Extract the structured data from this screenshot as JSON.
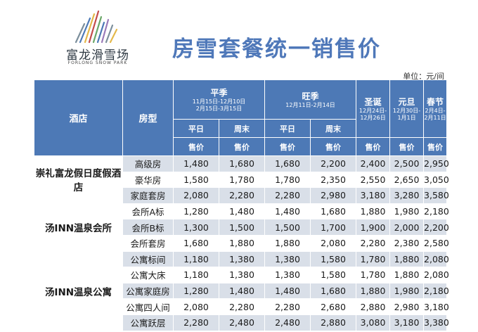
{
  "logo": {
    "cn": "富龙滑雪场",
    "en": "FORLONG SNOW PARK"
  },
  "title": "房雪套餐统一销售价",
  "unit": "单位：元/间",
  "headers": {
    "hotel": "酒店",
    "room": "房型",
    "periods": [
      {
        "name": "平季",
        "dates": [
          "11月15日-12月10日",
          "2月15日-3月15日"
        ]
      },
      {
        "name": "旺季",
        "dates": [
          "12月11日-2月14日"
        ]
      },
      {
        "name": "圣诞",
        "dates": [
          "12月24日-",
          "12月26日"
        ]
      },
      {
        "name": "元旦",
        "dates": [
          "12月30日-",
          "1月1日"
        ]
      },
      {
        "name": "春节",
        "dates": [
          "2月4日-",
          "2月11日"
        ]
      }
    ],
    "weekday": "平日",
    "weekend": "周末",
    "price": "售价"
  },
  "hotels": [
    {
      "name": "崇礼富龙假日度假酒店",
      "rooms": [
        {
          "name": "高级房",
          "prices": [
            "1,480",
            "1,680",
            "1,680",
            "2,200",
            "2,400",
            "2,500",
            "2,950"
          ]
        },
        {
          "name": "豪华房",
          "prices": [
            "1,580",
            "1,780",
            "1,780",
            "2,350",
            "2,550",
            "2,650",
            "3,050"
          ]
        },
        {
          "name": "家庭套房",
          "prices": [
            "2,080",
            "2,280",
            "2,280",
            "2,980",
            "3,180",
            "3,280",
            "3,580"
          ]
        }
      ]
    },
    {
      "name": "汤INN温泉会所",
      "rooms": [
        {
          "name": "会所A标",
          "prices": [
            "1,280",
            "1,480",
            "1,480",
            "1,680",
            "1,880",
            "1,980",
            "2,180"
          ]
        },
        {
          "name": "会所B标",
          "prices": [
            "1,300",
            "1,500",
            "1,500",
            "1,700",
            "1,900",
            "2,000",
            "2,200"
          ]
        },
        {
          "name": "会所套房",
          "prices": [
            "1,680",
            "1,880",
            "1,880",
            "2,080",
            "2,280",
            "2,380",
            "2,580"
          ]
        }
      ]
    },
    {
      "name": "汤INN温泉公寓",
      "rooms": [
        {
          "name": "公寓标间",
          "prices": [
            "1,180",
            "1,380",
            "1,380",
            "1,580",
            "1,780",
            "1,880",
            "2,080"
          ]
        },
        {
          "name": "公寓大床",
          "prices": [
            "1,180",
            "1,380",
            "1,380",
            "1,580",
            "1,780",
            "1,880",
            "2,080"
          ]
        },
        {
          "name": "公寓家庭房",
          "prices": [
            "1,280",
            "1,480",
            "1,480",
            "1,680",
            "1,880",
            "1,980",
            "2,180"
          ]
        },
        {
          "name": "公寓四人间",
          "prices": [
            "2,080",
            "2,280",
            "2,280",
            "2,680",
            "2,880",
            "2,980",
            "3,180"
          ]
        },
        {
          "name": "公寓跃层",
          "prices": [
            "2,280",
            "2,480",
            "2,480",
            "2,880",
            "3,080",
            "3,180",
            "3,380"
          ]
        }
      ]
    }
  ],
  "colors": {
    "header": "#4d79b6",
    "title": "#4f78b9",
    "row_shade": "#d9dfe8"
  }
}
